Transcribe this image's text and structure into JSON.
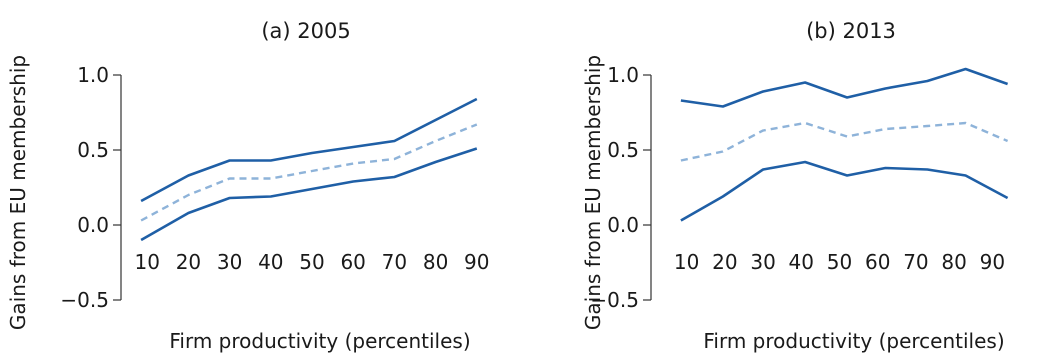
{
  "chart_data": [
    {
      "type": "line",
      "title": "(a) 2005",
      "xlabel": "Firm productivity (percentiles)",
      "ylabel": "Gains from EU membership",
      "x": [
        10,
        20,
        30,
        40,
        50,
        60,
        70,
        80,
        90
      ],
      "yticks": [
        "1.0",
        "0.5",
        "0.0",
        "−0.5"
      ],
      "ytick_values": [
        1.0,
        0.5,
        0.0,
        -0.5
      ],
      "xticks": [
        "10",
        "20",
        "30",
        "40",
        "50",
        "60",
        "70",
        "80",
        "90"
      ],
      "ylim": [
        -0.5,
        1.0
      ],
      "xlim": [
        8,
        92
      ],
      "series": [
        {
          "role": "upper",
          "style": "solid",
          "color": "#1f5fa6",
          "x": [
            8.5,
            20,
            30,
            40,
            50,
            60,
            70,
            80,
            90
          ],
          "values": [
            0.16,
            0.33,
            0.43,
            0.43,
            0.48,
            0.52,
            0.56,
            0.7,
            0.84
          ]
        },
        {
          "role": "estimate",
          "style": "dashed",
          "color": "#8eb3d9",
          "x": [
            8.5,
            20,
            30,
            40,
            50,
            60,
            70,
            80,
            90
          ],
          "values": [
            0.03,
            0.2,
            0.31,
            0.31,
            0.36,
            0.41,
            0.44,
            0.56,
            0.67
          ]
        },
        {
          "role": "lower",
          "style": "solid",
          "color": "#1f5fa6",
          "x": [
            8.5,
            20,
            30,
            40,
            50,
            60,
            70,
            80,
            90
          ],
          "values": [
            -0.1,
            0.08,
            0.18,
            0.19,
            0.24,
            0.29,
            0.32,
            0.42,
            0.51
          ]
        }
      ]
    },
    {
      "type": "line",
      "title": "(b) 2013",
      "xlabel": "Firm productivity (percentiles)",
      "ylabel": "Gains from EU membership",
      "x": [
        10,
        20,
        30,
        40,
        50,
        60,
        70,
        80,
        90
      ],
      "yticks": [
        "1.0",
        "0.5",
        "0.0",
        "−0.5"
      ],
      "ytick_values": [
        1.0,
        0.5,
        0.0,
        -0.5
      ],
      "xticks": [
        "10",
        "20",
        "30",
        "40",
        "50",
        "60",
        "70",
        "80",
        "90"
      ],
      "ylim": [
        -0.5,
        1.0
      ],
      "xlim": [
        8,
        92
      ],
      "series": [
        {
          "role": "upper",
          "style": "solid",
          "color": "#1f5fa6",
          "x": [
            8.5,
            19.5,
            30,
            41,
            52,
            62,
            73,
            83,
            94
          ],
          "values": [
            0.83,
            0.79,
            0.89,
            0.95,
            0.85,
            0.91,
            0.96,
            1.04,
            0.94
          ]
        },
        {
          "role": "estimate",
          "style": "dashed",
          "color": "#8eb3d9",
          "x": [
            8.5,
            19.5,
            30,
            41,
            52,
            62,
            73,
            83,
            94
          ],
          "values": [
            0.43,
            0.49,
            0.63,
            0.68,
            0.59,
            0.64,
            0.66,
            0.68,
            0.56
          ]
        },
        {
          "role": "lower",
          "style": "solid",
          "color": "#1f5fa6",
          "x": [
            8.5,
            19.5,
            30,
            41,
            52,
            62,
            73,
            83,
            94
          ],
          "values": [
            0.03,
            0.19,
            0.37,
            0.42,
            0.33,
            0.38,
            0.37,
            0.33,
            0.18
          ]
        }
      ]
    }
  ]
}
